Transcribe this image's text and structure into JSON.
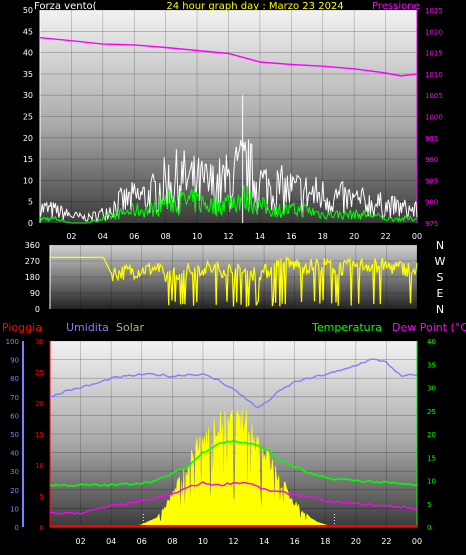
{
  "colors": {
    "bg": "#000000",
    "axis": "#ffffff",
    "title": "#ffff00",
    "pressure": "#ff00ff",
    "wind_speed": "#ffffff",
    "wind_avg": "#00ff00",
    "direction": "#ffff00",
    "rain": "#ff0000",
    "humidity": "#7f7fff",
    "solar": "#ffff00",
    "solar_label": "#b8b08a",
    "temperature": "#00ff00",
    "dewpoint": "#ff00ff"
  },
  "header": {
    "wind_label": "Forza vento(",
    "title": "24 hour graph day : Marzo 23 2024",
    "pressure_label": "Pressione"
  },
  "direction_letters": [
    "N",
    "W",
    "S",
    "E",
    "N"
  ],
  "bottom_labels": {
    "rain": "Pioggia",
    "humidity": "Umidita",
    "solar": "Solar",
    "temperature": "Temperatura",
    "dewpoint": "Dew Point (°C)"
  },
  "chart_data": [
    {
      "type": "line",
      "name": "wind-and-pressure",
      "x_ticks": [
        "02",
        "04",
        "06",
        "08",
        "10",
        "12",
        "14",
        "16",
        "18",
        "20",
        "22",
        "00"
      ],
      "y_left": {
        "range": [
          0,
          50
        ],
        "ticks": [
          "0",
          "5",
          "10",
          "15",
          "20",
          "25",
          "30",
          "35",
          "40",
          "45",
          "50"
        ]
      },
      "y_right": {
        "range": [
          975,
          1025
        ],
        "ticks": [
          "975",
          "980",
          "985",
          "990",
          "995",
          "1000",
          "1005",
          "1010",
          "1015",
          "1020",
          "1025"
        ]
      },
      "series": [
        {
          "key": "pressure",
          "axis": "right",
          "x": [
            0,
            2,
            4,
            6,
            8,
            10,
            12,
            13,
            14,
            16,
            18,
            20,
            22,
            23,
            24
          ],
          "y": [
            1018.5,
            1017.8,
            1017,
            1016.8,
            1016.2,
            1015.5,
            1014.8,
            1013.8,
            1012.8,
            1012.2,
            1011.8,
            1011.2,
            1010.2,
            1009.5,
            1010
          ]
        },
        {
          "key": "wind_gust",
          "axis": "left",
          "x": [
            0,
            1,
            2,
            3,
            4,
            5,
            6,
            7,
            8,
            9,
            10,
            11,
            12,
            13,
            14,
            15,
            16,
            17,
            18,
            19,
            20,
            21,
            22,
            23,
            24
          ],
          "y": [
            6,
            5,
            3,
            2,
            4,
            8,
            10,
            11,
            16,
            18,
            16,
            15,
            17,
            22,
            16,
            14,
            13,
            12,
            11,
            10,
            9,
            8,
            7,
            6,
            5
          ]
        },
        {
          "key": "wind_avg",
          "axis": "left",
          "x": [
            0,
            1,
            2,
            3,
            4,
            5,
            6,
            7,
            8,
            9,
            10,
            11,
            12,
            13,
            14,
            15,
            16,
            17,
            18,
            19,
            20,
            21,
            22,
            23,
            24
          ],
          "y": [
            1,
            1,
            0,
            0,
            1,
            2,
            3,
            3,
            5,
            5,
            5,
            4,
            5,
            6,
            4,
            3,
            3,
            3,
            2,
            2,
            2,
            2,
            1,
            1,
            1
          ]
        }
      ]
    },
    {
      "type": "scatter",
      "name": "wind-direction",
      "x_ticks": [
        "02",
        "04",
        "06",
        "08",
        "10",
        "12",
        "14",
        "16",
        "18",
        "20",
        "22",
        "00"
      ],
      "y_ticks": [
        "0",
        "90",
        "180",
        "270",
        "360"
      ],
      "ylim": [
        0,
        360
      ],
      "series": [
        {
          "key": "direction",
          "x": [
            0,
            1,
            2,
            3,
            3.5,
            4,
            5,
            6,
            7,
            7.5,
            8,
            9,
            10,
            11,
            12,
            13,
            14,
            15,
            16,
            17,
            18,
            19,
            20,
            21,
            22,
            23,
            24
          ],
          "y": [
            290,
            290,
            290,
            290,
            290,
            200,
            210,
            220,
            230,
            180,
            200,
            215,
            230,
            225,
            215,
            200,
            205,
            250,
            250,
            240,
            250,
            230,
            240,
            250,
            240,
            230,
            220
          ]
        }
      ]
    },
    {
      "type": "line",
      "name": "rain-humidity-solar-temperature",
      "x_ticks": [
        "02",
        "04",
        "06",
        "08",
        "10",
        "12",
        "14",
        "16",
        "18",
        "20",
        "22",
        "00"
      ],
      "y_humidity": {
        "range": [
          0,
          100
        ],
        "ticks": [
          "0",
          "10",
          "20",
          "30",
          "40",
          "50",
          "60",
          "70",
          "80",
          "90",
          "100"
        ]
      },
      "y_rain": {
        "range": [
          0,
          30
        ],
        "ticks": [
          "0",
          "5",
          "10",
          "15",
          "20",
          "25",
          "30"
        ]
      },
      "y_temp": {
        "range": [
          0,
          40
        ],
        "ticks": [
          "0",
          "5",
          "10",
          "15",
          "20",
          "25",
          "30",
          "35",
          "40"
        ]
      },
      "series": [
        {
          "key": "humidity",
          "axis": "humidity",
          "x": [
            0,
            1,
            2,
            3,
            4,
            5,
            6,
            7,
            8,
            9,
            10,
            11,
            12,
            13,
            13.5,
            14,
            15,
            16,
            17,
            18,
            19,
            20,
            21,
            22,
            22.5,
            23,
            24
          ],
          "y": [
            70,
            73,
            75,
            77,
            80,
            81,
            82,
            82,
            81,
            82,
            82,
            79,
            74,
            68,
            64,
            66,
            73,
            78,
            80,
            82,
            84,
            87,
            90,
            89,
            84,
            81,
            82
          ]
        },
        {
          "key": "solar",
          "axis": "temp",
          "x": [
            0,
            5,
            6,
            7,
            8,
            9,
            10,
            11,
            12,
            13,
            14,
            15,
            16,
            17,
            17.5,
            18,
            18.5,
            24
          ],
          "y": [
            0,
            0,
            0.5,
            2,
            8,
            15,
            22,
            25,
            26,
            25,
            19,
            12,
            6,
            2,
            1,
            0.5,
            0,
            0
          ]
        },
        {
          "key": "temperature",
          "axis": "temp",
          "x": [
            0,
            2,
            4,
            6,
            7,
            8,
            9,
            10,
            11,
            12,
            13,
            14,
            15,
            16,
            17,
            18,
            20,
            22,
            24
          ],
          "y": [
            9,
            9,
            9,
            9.5,
            10,
            11.5,
            13,
            16,
            18,
            18.5,
            18,
            17,
            14.5,
            13,
            11.5,
            10.5,
            10,
            9.5,
            9
          ]
        },
        {
          "key": "dewpoint",
          "axis": "temp",
          "x": [
            0,
            2,
            4,
            6,
            8,
            9,
            10,
            11,
            12,
            13,
            14,
            15,
            16,
            17,
            18,
            20,
            22,
            24
          ],
          "y": [
            3,
            3,
            4.5,
            5.5,
            7,
            8.5,
            9.5,
            9,
            9.5,
            9.5,
            8,
            7.5,
            7,
            6.5,
            5.5,
            5,
            4.5,
            4
          ]
        },
        {
          "key": "rain",
          "axis": "rain",
          "x": [
            0,
            24
          ],
          "y": [
            0,
            0
          ]
        }
      ]
    }
  ]
}
